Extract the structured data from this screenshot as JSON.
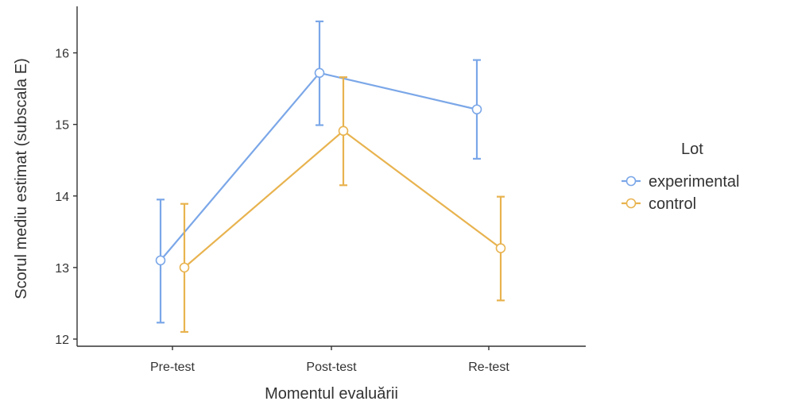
{
  "chart_data": {
    "type": "line",
    "title": "",
    "xlabel": "Momentul evaluării",
    "ylabel": "Scorul mediu estimat (subscala E)",
    "categories": [
      "Pre-test",
      "Post-test",
      "Re-test"
    ],
    "ylim": [
      11.9,
      16.65
    ],
    "yticks": [
      12,
      13,
      14,
      15,
      16
    ],
    "grid": false,
    "legend": {
      "title": "Lot",
      "position": "right"
    },
    "series": [
      {
        "name": "experimental",
        "color": "#7BA7E8",
        "values": [
          13.1,
          15.72,
          15.21
        ],
        "lower": [
          12.23,
          14.99,
          14.52
        ],
        "upper": [
          13.95,
          16.44,
          15.9
        ]
      },
      {
        "name": "control",
        "color": "#E8B34F",
        "values": [
          13.0,
          14.91,
          13.27
        ],
        "lower": [
          12.1,
          14.15,
          12.54
        ],
        "upper": [
          13.89,
          15.66,
          13.99
        ]
      }
    ]
  }
}
